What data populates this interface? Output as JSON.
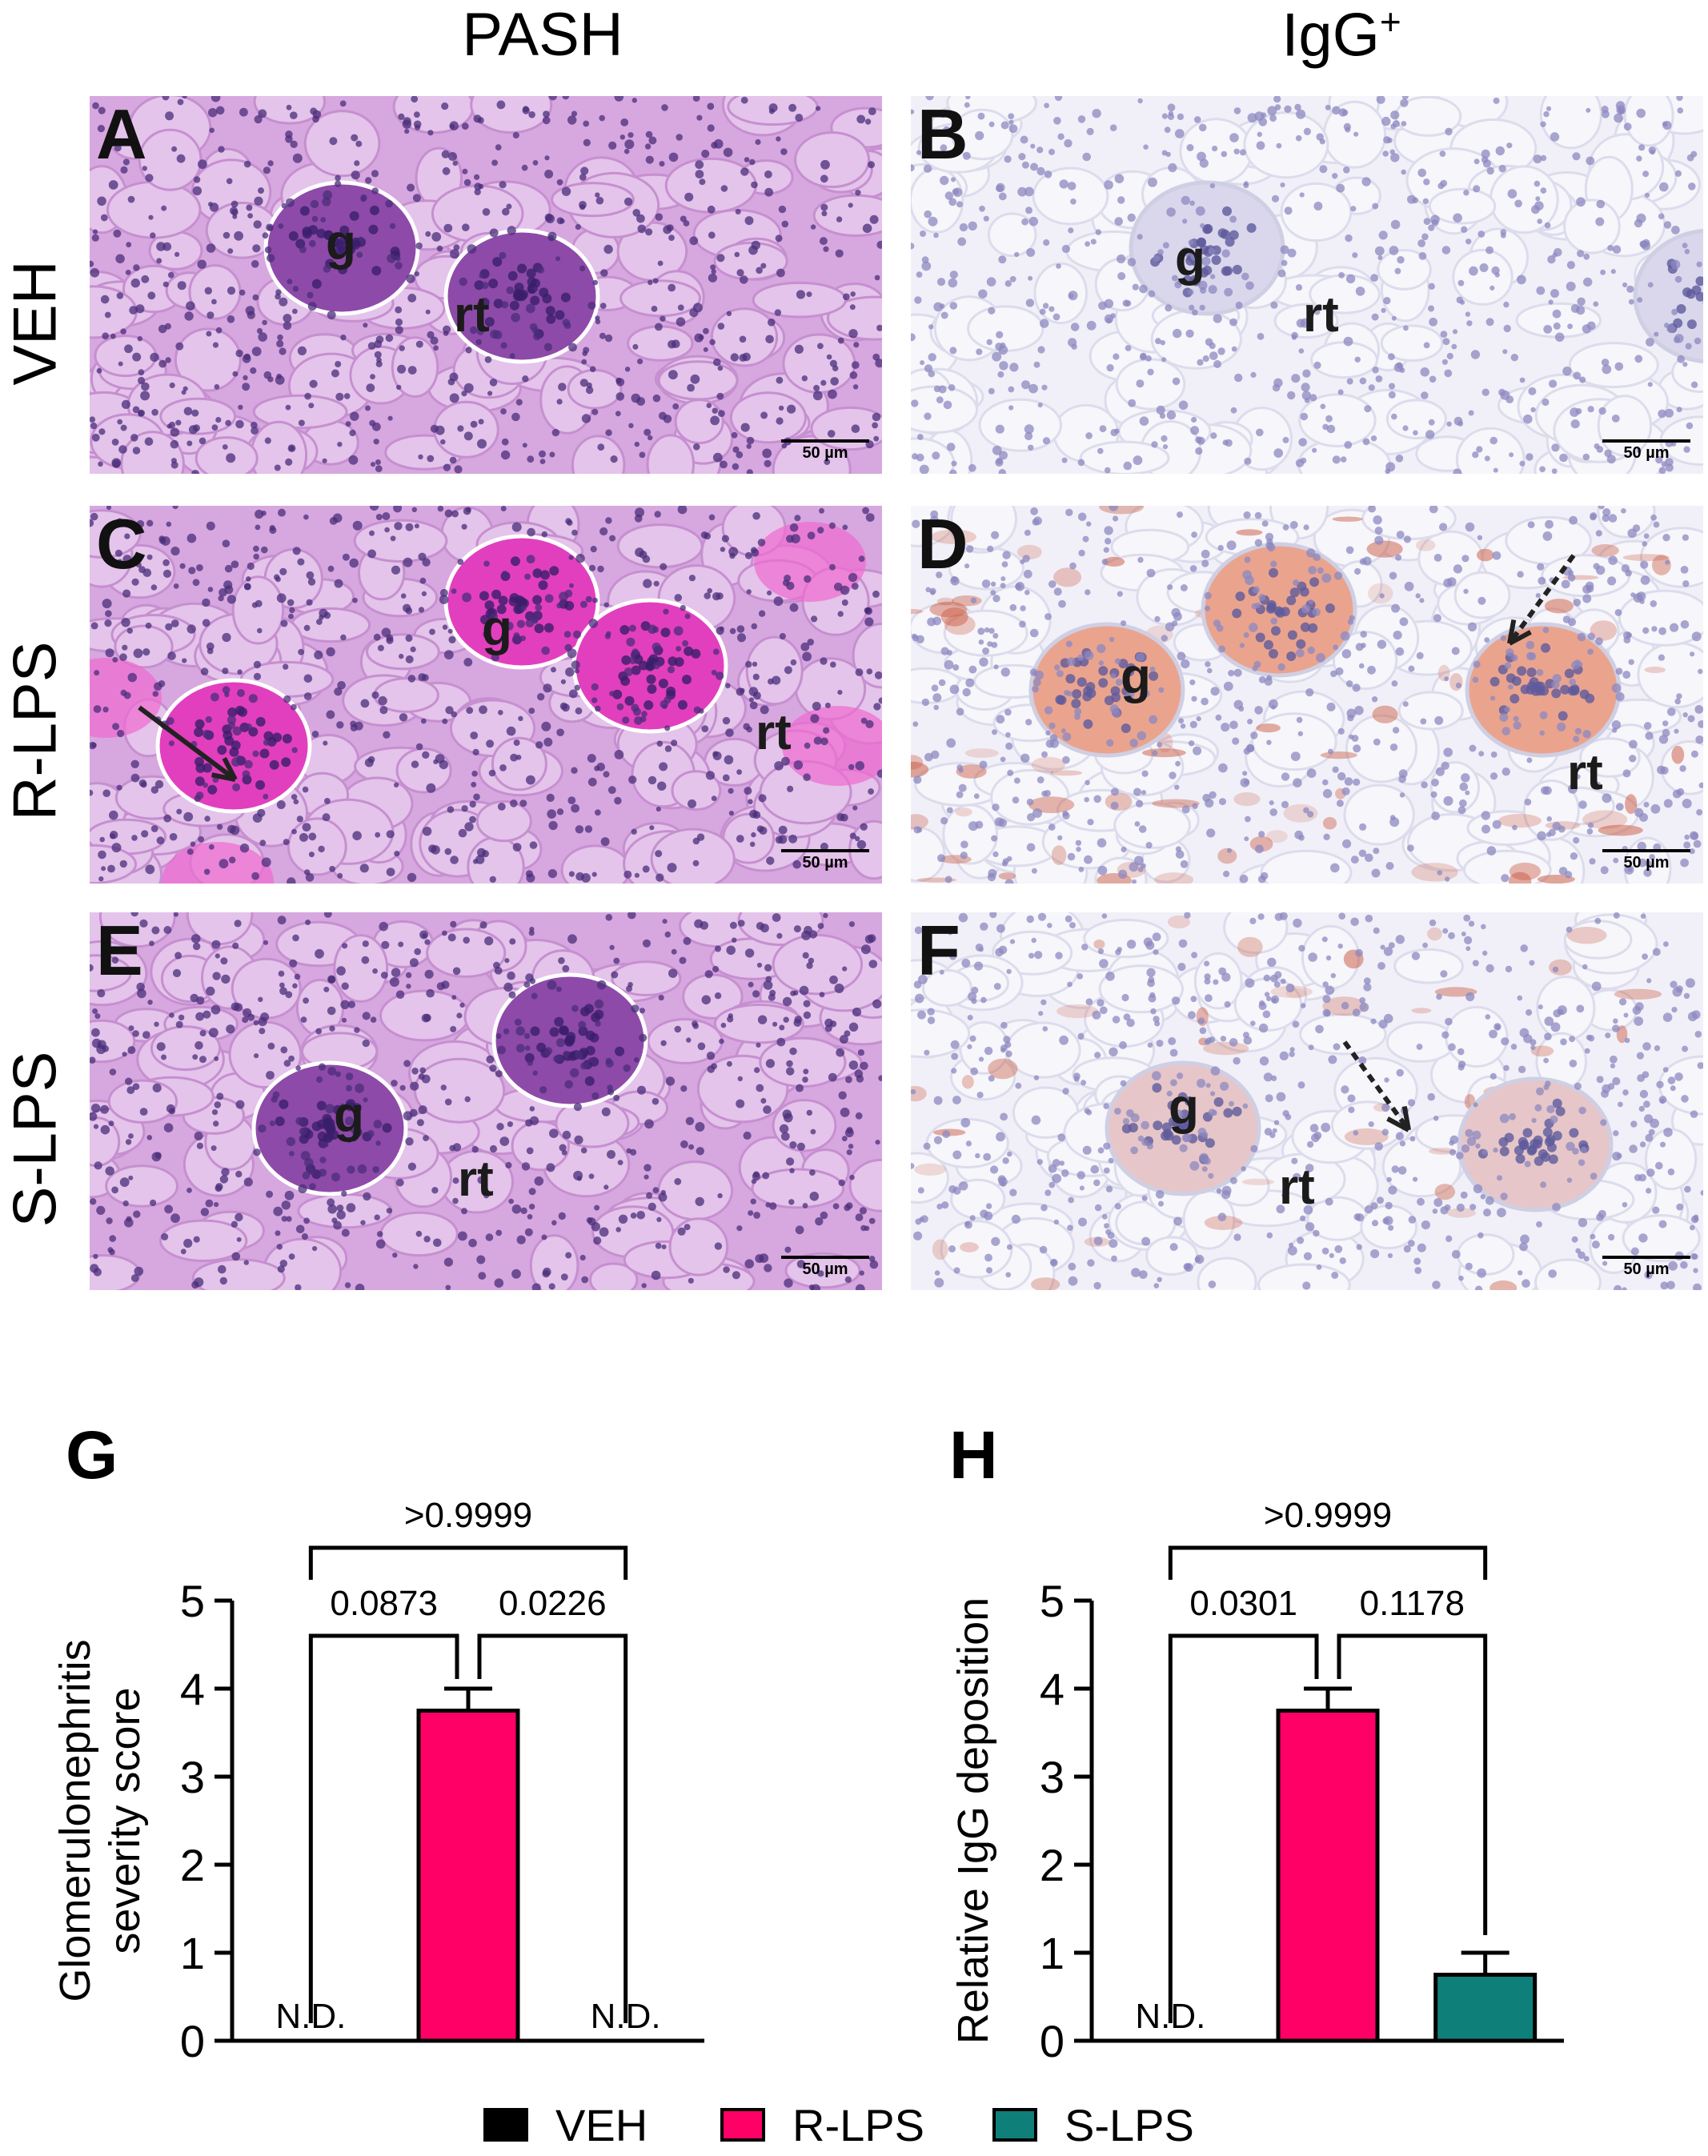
{
  "columns": {
    "left": "PASH",
    "right_base": "IgG",
    "right_sup": "+"
  },
  "rows": [
    "VEH",
    "R-LPS",
    "S-LPS"
  ],
  "panels": [
    {
      "letter": "A",
      "g": "g",
      "rt": "rt",
      "scale": "50 µm",
      "stain": "pash",
      "sev": 0
    },
    {
      "letter": "B",
      "g": "g",
      "rt": "rt",
      "scale": "50 µm",
      "stain": "igg",
      "sev": 0
    },
    {
      "letter": "C",
      "g": "g",
      "rt": "rt",
      "scale": "50 µm",
      "stain": "pash",
      "sev": 2
    },
    {
      "letter": "D",
      "g": "g",
      "rt": "rt",
      "scale": "50 µm",
      "stain": "igg",
      "sev": 2
    },
    {
      "letter": "E",
      "g": "g",
      "rt": "rt",
      "scale": "50 µm",
      "stain": "pash",
      "sev": 1
    },
    {
      "letter": "F",
      "g": "g",
      "rt": "rt",
      "scale": "50 µm",
      "stain": "igg",
      "sev": 1
    }
  ],
  "colors": {
    "VEH": "#000000",
    "R-LPS": "#ff0066",
    "S-LPS": "#0f7f7a"
  },
  "chart_data": [
    {
      "panel_letter": "G",
      "type": "bar",
      "categories": [
        "VEH",
        "R-LPS",
        "S-LPS"
      ],
      "values": [
        0,
        3.75,
        0
      ],
      "errors": [
        0,
        0.25,
        0
      ],
      "bar_labels": [
        "N.D.",
        "",
        "N.D."
      ],
      "ylabel_lines": [
        "Glomerulonephritis",
        "severity score"
      ],
      "ylim": [
        0,
        5
      ],
      "yticks": [
        "0",
        "1",
        "2",
        "3",
        "4",
        "5"
      ],
      "comparisons": [
        {
          "from": 0,
          "to": 1,
          "p": "0.0873",
          "level": 1
        },
        {
          "from": 1,
          "to": 2,
          "p": "0.0226",
          "level": 1
        },
        {
          "from": 0,
          "to": 2,
          "p": ">0.9999",
          "level": 2
        }
      ]
    },
    {
      "panel_letter": "H",
      "type": "bar",
      "categories": [
        "VEH",
        "R-LPS",
        "S-LPS"
      ],
      "values": [
        0,
        3.75,
        0.75
      ],
      "errors": [
        0,
        0.25,
        0.25
      ],
      "bar_labels": [
        "N.D.",
        "",
        ""
      ],
      "ylabel_lines": [
        "Relative IgG deposition"
      ],
      "ylim": [
        0,
        5
      ],
      "yticks": [
        "0",
        "1",
        "2",
        "3",
        "4",
        "5"
      ],
      "comparisons": [
        {
          "from": 0,
          "to": 1,
          "p": "0.0301",
          "level": 1
        },
        {
          "from": 1,
          "to": 2,
          "p": "0.1178",
          "level": 1
        },
        {
          "from": 0,
          "to": 2,
          "p": ">0.9999",
          "level": 2
        }
      ]
    }
  ],
  "legend": [
    {
      "label": "VEH",
      "color": "#000000"
    },
    {
      "label": "R-LPS",
      "color": "#ff0066"
    },
    {
      "label": "S-LPS",
      "color": "#0f7f7a"
    }
  ]
}
